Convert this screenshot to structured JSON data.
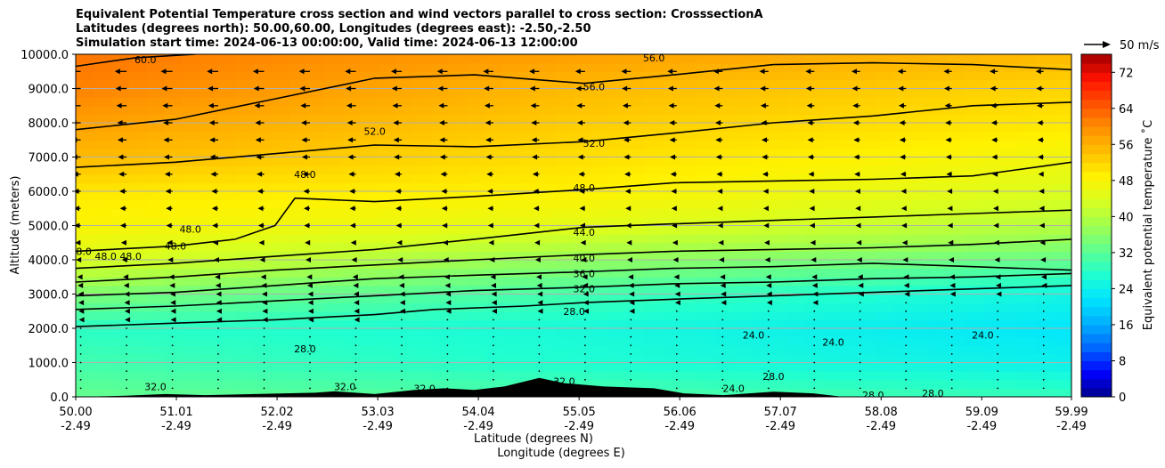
{
  "title_lines": [
    "Equivalent Potential Temperature cross section and wind vectors parallel to cross section: CrosssectionA",
    "Latitudes (degrees north): 50.00,60.00, Longitudes (degrees east): -2.50,-2.50",
    "Simulation start time: 2024-06-13 00:00:00, Valid time: 2024-06-13 12:00:00"
  ],
  "quiver_key_label": "50 m/s",
  "chart_data": {
    "type": "heatmap",
    "ylabel": "Altitude (meters)",
    "xlabel_line1": "Latitude (degrees N)",
    "xlabel_line2": "Longitude (degrees E)",
    "colorbar_label": "Equivalent potential temperature ˚C",
    "ylim": [
      0,
      10000
    ],
    "xlim": [
      50.0,
      59.99
    ],
    "y_ticks": [
      "0.0",
      "1000.0",
      "2000.0",
      "3000.0",
      "4000.0",
      "5000.0",
      "6000.0",
      "7000.0",
      "8000.0",
      "9000.0",
      "10000.0"
    ],
    "y_tick_values": [
      0,
      1000,
      2000,
      3000,
      4000,
      5000,
      6000,
      7000,
      8000,
      9000,
      10000
    ],
    "x_ticks_lat": [
      "50.00",
      "51.01",
      "52.02",
      "53.03",
      "54.04",
      "55.05",
      "56.06",
      "57.07",
      "58.08",
      "59.09",
      "59.99"
    ],
    "x_ticks_lon": [
      "-2.49",
      "-2.49",
      "-2.49",
      "-2.49",
      "-2.49",
      "-2.49",
      "-2.49",
      "-2.49",
      "-2.49",
      "-2.49",
      "-2.49"
    ],
    "x_tick_values": [
      50.0,
      51.01,
      52.02,
      53.03,
      54.04,
      55.05,
      56.06,
      57.07,
      58.08,
      59.09,
      59.99
    ],
    "colorbar_ticks": [
      "0",
      "8",
      "16",
      "24",
      "32",
      "40",
      "48",
      "56",
      "64",
      "72"
    ],
    "colorbar_tick_values": [
      0,
      8,
      16,
      24,
      32,
      40,
      48,
      56,
      64,
      72
    ],
    "colorbar_range": [
      0,
      76
    ],
    "contour_levels": [
      {
        "level": 24.0,
        "label": "24.0"
      },
      {
        "level": 28.0,
        "label": "28.0"
      },
      {
        "level": 32.0,
        "label": "32.0"
      },
      {
        "level": 36.0,
        "label": "36.0"
      },
      {
        "level": 40.0,
        "label": "40.0"
      },
      {
        "level": 44.0,
        "label": "44.0"
      },
      {
        "level": 48.0,
        "label": "48.0"
      },
      {
        "level": 52.0,
        "label": "52.0"
      },
      {
        "level": 56.0,
        "label": "56.0"
      },
      {
        "level": 60.0,
        "label": "60.0"
      }
    ],
    "contour_lines": [
      {
        "level": 28.0,
        "points": [
          [
            50.0,
            2050
          ],
          [
            51.0,
            2150
          ],
          [
            52.0,
            2250
          ],
          [
            53.0,
            2400
          ],
          [
            53.6,
            2550
          ],
          [
            54.5,
            2650
          ],
          [
            55.1,
            2750
          ],
          [
            56.0,
            2850
          ],
          [
            57.0,
            2950
          ],
          [
            58.0,
            3050
          ],
          [
            59.0,
            3150
          ],
          [
            59.99,
            3250
          ]
        ]
      },
      {
        "level": 32.0,
        "points": [
          [
            50.0,
            2550
          ],
          [
            51.0,
            2650
          ],
          [
            52.0,
            2800
          ],
          [
            53.0,
            2950
          ],
          [
            54.0,
            3100
          ],
          [
            55.1,
            3200
          ],
          [
            56.0,
            3300
          ],
          [
            57.0,
            3350
          ],
          [
            58.0,
            3450
          ],
          [
            59.0,
            3500
          ],
          [
            59.99,
            3600
          ]
        ]
      },
      {
        "level": 36.0,
        "points": [
          [
            50.0,
            2950
          ],
          [
            51.0,
            3050
          ],
          [
            52.0,
            3250
          ],
          [
            53.0,
            3450
          ],
          [
            54.0,
            3550
          ],
          [
            55.1,
            3650
          ],
          [
            56.0,
            3750
          ],
          [
            57.0,
            3800
          ],
          [
            58.0,
            3900
          ],
          [
            59.0,
            3800
          ],
          [
            59.99,
            3700
          ]
        ]
      },
      {
        "level": 40.0,
        "points": [
          [
            50.0,
            3350
          ],
          [
            51.0,
            3500
          ],
          [
            52.0,
            3700
          ],
          [
            53.0,
            3850
          ],
          [
            54.0,
            4000
          ],
          [
            55.1,
            4150
          ],
          [
            56.0,
            4250
          ],
          [
            57.0,
            4300
          ],
          [
            58.0,
            4350
          ],
          [
            59.0,
            4450
          ],
          [
            59.99,
            4600
          ]
        ]
      },
      {
        "level": 44.0,
        "points": [
          [
            50.0,
            3750
          ],
          [
            51.0,
            3900
          ],
          [
            52.0,
            4100
          ],
          [
            53.0,
            4300
          ],
          [
            54.0,
            4600
          ],
          [
            55.1,
            4950
          ],
          [
            56.0,
            5050
          ],
          [
            57.0,
            5150
          ],
          [
            58.0,
            5250
          ],
          [
            59.0,
            5350
          ],
          [
            59.99,
            5450
          ]
        ]
      },
      {
        "level": 48.0,
        "points": [
          [
            50.0,
            4250
          ],
          [
            51.0,
            4400
          ],
          [
            51.6,
            4600
          ],
          [
            52.0,
            5000
          ],
          [
            52.2,
            5800
          ],
          [
            53.0,
            5700
          ],
          [
            54.0,
            5850
          ],
          [
            55.1,
            6050
          ],
          [
            56.0,
            6250
          ],
          [
            57.0,
            6300
          ],
          [
            58.0,
            6350
          ],
          [
            59.0,
            6450
          ],
          [
            59.99,
            6850
          ]
        ]
      },
      {
        "level": 52.0,
        "points": [
          [
            50.0,
            6700
          ],
          [
            51.0,
            6850
          ],
          [
            52.0,
            7100
          ],
          [
            53.0,
            7350
          ],
          [
            54.0,
            7300
          ],
          [
            55.1,
            7450
          ],
          [
            56.0,
            7700
          ],
          [
            57.0,
            8000
          ],
          [
            58.0,
            8200
          ],
          [
            59.0,
            8500
          ],
          [
            59.99,
            8600
          ]
        ]
      },
      {
        "level": 56.0,
        "points": [
          [
            50.0,
            7800
          ],
          [
            51.0,
            8100
          ],
          [
            52.0,
            8700
          ],
          [
            53.0,
            9300
          ],
          [
            54.0,
            9400
          ],
          [
            55.1,
            9150
          ],
          [
            56.0,
            9400
          ],
          [
            57.0,
            9700
          ],
          [
            58.0,
            9750
          ],
          [
            59.0,
            9700
          ],
          [
            59.99,
            9550
          ]
        ]
      },
      {
        "level": 60.0,
        "points": [
          [
            50.0,
            9650
          ],
          [
            50.6,
            9900
          ],
          [
            51.2,
            10000
          ]
        ]
      }
    ],
    "contour_label_positions": [
      {
        "label": "60.0",
        "lat": 50.7,
        "alt": 9850
      },
      {
        "label": "56.0",
        "lat": 55.8,
        "alt": 9900
      },
      {
        "label": "56.0",
        "lat": 55.2,
        "alt": 9050
      },
      {
        "label": "52.0",
        "lat": 53.0,
        "alt": 7750
      },
      {
        "label": "52.0",
        "lat": 55.2,
        "alt": 7400
      },
      {
        "label": "48.0",
        "lat": 52.3,
        "alt": 6500
      },
      {
        "label": "48.0",
        "lat": 55.1,
        "alt": 6100
      },
      {
        "label": "48.0",
        "lat": 51.0,
        "alt": 4400
      },
      {
        "label": "48.0",
        "lat": 51.15,
        "alt": 4900
      },
      {
        "label": "48.0",
        "lat": 50.3,
        "alt": 4100
      },
      {
        "label": "48.0",
        "lat": 50.55,
        "alt": 4100
      },
      {
        "label": "48.0",
        "lat": 50.05,
        "alt": 4250
      },
      {
        "label": "44.0",
        "lat": 55.1,
        "alt": 4800
      },
      {
        "label": "40.0",
        "lat": 55.1,
        "alt": 4050
      },
      {
        "label": "36.0",
        "lat": 55.1,
        "alt": 3600
      },
      {
        "label": "32.0",
        "lat": 55.1,
        "alt": 3150
      },
      {
        "label": "28.0",
        "lat": 55.0,
        "alt": 2500
      },
      {
        "label": "28.0",
        "lat": 52.3,
        "alt": 1400
      },
      {
        "label": "28.0",
        "lat": 57.0,
        "alt": 600
      },
      {
        "label": "28.0",
        "lat": 58.0,
        "alt": 50
      },
      {
        "label": "28.0",
        "lat": 58.6,
        "alt": 100
      },
      {
        "label": "24.0",
        "lat": 56.8,
        "alt": 1800
      },
      {
        "label": "24.0",
        "lat": 57.6,
        "alt": 1600
      },
      {
        "label": "24.0",
        "lat": 59.1,
        "alt": 1800
      },
      {
        "label": "24.0",
        "lat": 56.6,
        "alt": 250
      },
      {
        "label": "32.0",
        "lat": 50.8,
        "alt": 300
      },
      {
        "label": "32.0",
        "lat": 52.7,
        "alt": 300
      },
      {
        "label": "32.0",
        "lat": 53.5,
        "alt": 250
      },
      {
        "label": "32.0",
        "lat": 54.9,
        "alt": 450
      }
    ],
    "background_field": [
      {
        "alt": 0,
        "lat50": 33,
        "lat55": 31,
        "lat60": 29
      },
      {
        "alt": 1000,
        "lat50": 30,
        "lat55": 27,
        "lat60": 24
      },
      {
        "alt": 2000,
        "lat50": 28,
        "lat55": 26,
        "lat60": 22
      },
      {
        "alt": 3000,
        "lat50": 35,
        "lat55": 30,
        "lat60": 25
      },
      {
        "alt": 4000,
        "lat50": 44,
        "lat55": 37,
        "lat60": 33
      },
      {
        "alt": 5000,
        "lat50": 48,
        "lat55": 45,
        "lat60": 40
      },
      {
        "alt": 6000,
        "lat50": 50,
        "lat55": 49,
        "lat60": 44
      },
      {
        "alt": 7000,
        "lat50": 55,
        "lat55": 51,
        "lat60": 47
      },
      {
        "alt": 8000,
        "lat50": 58,
        "lat55": 53,
        "lat60": 50
      },
      {
        "alt": 9000,
        "lat50": 61,
        "lat55": 55,
        "lat60": 52
      },
      {
        "alt": 10000,
        "lat50": 62,
        "lat55": 58,
        "lat60": 55
      }
    ],
    "wind_vectors": {
      "lat_step": 0.46,
      "alt_levels": [
        250,
        500,
        750,
        1000,
        1250,
        1500,
        1750,
        2000,
        2250,
        2500,
        2750,
        3000,
        3250,
        3500,
        4000,
        4500,
        5000,
        5500,
        6000,
        6500,
        7000,
        7500,
        8000,
        8500,
        9000,
        9500
      ],
      "speed_by_alt": [
        {
          "alt": 250,
          "u": -1
        },
        {
          "alt": 1000,
          "u": -2
        },
        {
          "alt": 2000,
          "u": -2
        },
        {
          "alt": 3000,
          "u": -3
        },
        {
          "alt": 4000,
          "u": -6
        },
        {
          "alt": 5000,
          "u": -8
        },
        {
          "alt": 6000,
          "u": -9
        },
        {
          "alt": 7000,
          "u": -11
        },
        {
          "alt": 8000,
          "u": -12
        },
        {
          "alt": 9000,
          "u": -14
        },
        {
          "alt": 9500,
          "u": -15
        }
      ]
    },
    "terrain": [
      {
        "lat": 50.0,
        "alt": 0
      },
      {
        "lat": 50.5,
        "alt": 30
      },
      {
        "lat": 50.9,
        "alt": 80
      },
      {
        "lat": 51.3,
        "alt": 50
      },
      {
        "lat": 51.8,
        "alt": 80
      },
      {
        "lat": 52.4,
        "alt": 120
      },
      {
        "lat": 52.6,
        "alt": 160
      },
      {
        "lat": 53.0,
        "alt": 80
      },
      {
        "lat": 53.4,
        "alt": 200
      },
      {
        "lat": 53.7,
        "alt": 250
      },
      {
        "lat": 54.0,
        "alt": 200
      },
      {
        "lat": 54.3,
        "alt": 300
      },
      {
        "lat": 54.65,
        "alt": 550
      },
      {
        "lat": 54.9,
        "alt": 400
      },
      {
        "lat": 55.3,
        "alt": 300
      },
      {
        "lat": 55.8,
        "alt": 250
      },
      {
        "lat": 56.1,
        "alt": 100
      },
      {
        "lat": 56.5,
        "alt": 50
      },
      {
        "lat": 57.0,
        "alt": 150
      },
      {
        "lat": 57.4,
        "alt": 100
      },
      {
        "lat": 57.7,
        "alt": 0
      },
      {
        "lat": 59.99,
        "alt": 0
      }
    ]
  },
  "colors": {
    "colormap": [
      "#00008b",
      "#0000ff",
      "#0066ff",
      "#00b0ff",
      "#00e5ff",
      "#20ffd0",
      "#60ff90",
      "#a0ff50",
      "#d8ff20",
      "#fff200",
      "#ffc000",
      "#ff9000",
      "#ff5000",
      "#ff1000",
      "#a00000"
    ],
    "contour": "#000000",
    "grid": "#b0b0b0",
    "terrain": "#000000"
  }
}
